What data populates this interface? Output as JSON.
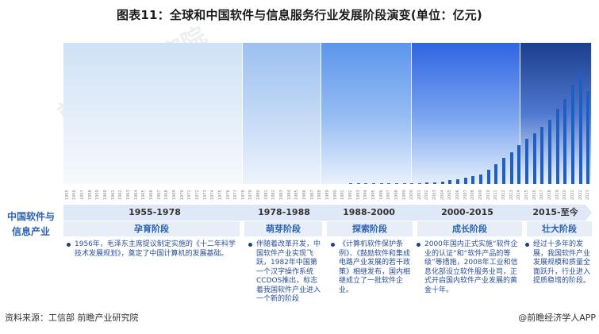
{
  "title": "图表11：全球和中国软件与信息服务行业发展阶段演变(单位：亿元)",
  "side_label_line1": "中国软件与",
  "side_label_line2": "信息产业",
  "stages": [
    {
      "range": "1955-1978",
      "name": "孕育阶段",
      "desc": "1956年，毛泽东主席提议制定实施的《十二年科学技术发展规划》，奠定了中国计算机的发展基础。"
    },
    {
      "range": "1978-1988",
      "name": "萌芽阶段",
      "desc": "伴随着改革开发，中国软件产业实现飞跃，1982年中国第一个汉字操作系统CCDOS推出，标志着我国软件产业进入一个新的阶段"
    },
    {
      "range": "1988-2000",
      "name": "探索阶段",
      "desc": "《计算机软件保护条例》、《鼓励软件和集成电路产业发展的若干政策》相继发布，国内相继成立了一批软件企业。"
    },
    {
      "range": "2000-2015",
      "name": "成长阶段",
      "desc": "2000年国内正式实施“软件企业的认证”和“软件产品的等级”等措施，2008年工业和信息化部设立软件服务业司，正式开启国内软件产业发展的黄金十年。"
    },
    {
      "range": "2015-至今",
      "name": "壮大阶段",
      "desc": "经过十多年的发展，我国软件产业发展规模和质量全面跃升，行业进入提质稳增的阶段。"
    }
  ],
  "source": "资料来源：工信部 前瞻产业研究院",
  "brand": "@前瞻经济学人APP",
  "watermark": "前瞻产业研究院",
  "colors": {
    "bar": "#1f5fc2",
    "stage_text": "#2c62b3",
    "desc_text": "#2a4f99"
  },
  "chart_data": {
    "type": "bar",
    "title": "全球和中国软件与信息服务行业发展阶段演变(单位：亿元)",
    "xlabel": "",
    "ylabel": "亿元",
    "grid": false,
    "legend": null,
    "categories": [
      "1955",
      "1956",
      "1957",
      "1958",
      "1959",
      "1960",
      "1961",
      "1962",
      "1963",
      "1964",
      "1965",
      "1966",
      "1967",
      "1968",
      "1969",
      "1970",
      "1971",
      "1972",
      "1973",
      "1974",
      "1975",
      "1976",
      "1977",
      "1978",
      "1979",
      "1980",
      "1981",
      "1982",
      "1983",
      "1984",
      "1985",
      "1986",
      "1987",
      "1988",
      "1989",
      "1990",
      "1991",
      "1992",
      "1993",
      "1994",
      "1995",
      "1996",
      "1997",
      "1998",
      "1999",
      "2000",
      "2001",
      "2002",
      "2003",
      "2004",
      "2005",
      "2006",
      "2007",
      "2008",
      "2009",
      "2010",
      "2011",
      "2012",
      "2013",
      "2014",
      "2015",
      "2016",
      "2017",
      "2018",
      "2019",
      "2020",
      "2021",
      "2022",
      "2023"
    ],
    "values": [
      0,
      0,
      0,
      0,
      0,
      0,
      0,
      0,
      0,
      0,
      0,
      0,
      0,
      0,
      0,
      0,
      0,
      0,
      0,
      0,
      0,
      0,
      0,
      0,
      0,
      0,
      0,
      0,
      0,
      0,
      0,
      0,
      0,
      0,
      0,
      0,
      0,
      200,
      300,
      400,
      500,
      600,
      700,
      800,
      900,
      1000,
      1100,
      1300,
      1900,
      2400,
      3900,
      4800,
      5800,
      7600,
      9500,
      13400,
      18800,
      24800,
      30600,
      37000,
      43200,
      48600,
      55000,
      61900,
      72100,
      81600,
      94994,
      108126,
      89000
    ],
    "stage_bands": [
      {
        "label": "1955-1978",
        "from": "1955",
        "to": "1978"
      },
      {
        "label": "1978-1988",
        "from": "1979",
        "to": "1988"
      },
      {
        "label": "1988-2000",
        "from": "1989",
        "to": "2000"
      },
      {
        "label": "2000-2015",
        "from": "2001",
        "to": "2015"
      },
      {
        "label": "2015-至今",
        "from": "2016",
        "to": "2023"
      }
    ]
  }
}
